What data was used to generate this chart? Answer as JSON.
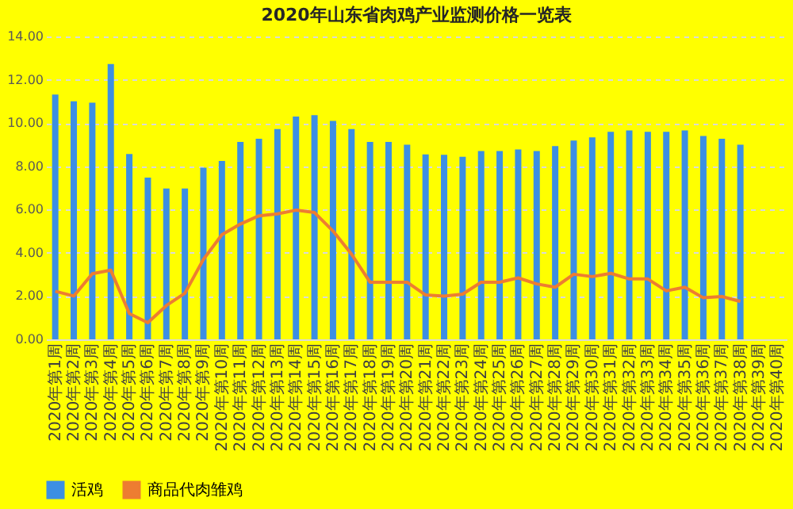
{
  "chart_data": {
    "type": "bar",
    "title": "2020年山东省肉鸡产业监测价格一览表",
    "categories": [
      "2020年第1周",
      "2020年第2周",
      "2020年第3周",
      "2020年第4周",
      "2020年第5周",
      "2020年第6周",
      "2020年第7周",
      "2020年第8周",
      "2020年第9周",
      "2020年第10周",
      "2020年第11周",
      "2020年第12周",
      "2020年第13周",
      "2020年第14周",
      "2020年第15周",
      "2020年第16周",
      "2020年第17周",
      "2020年第18周",
      "2020年第19周",
      "2020年第20周",
      "2020年第21周",
      "2020年第22周",
      "2020年第23周",
      "2020年第24周",
      "2020年第25周",
      "2020年第26周",
      "2020年第27周",
      "2020年第28周",
      "2020年第29周",
      "2020年第30周",
      "2020年第31周",
      "2020年第32周",
      "2020年第33周",
      "2020年第34周",
      "2020年第35周",
      "2020年第36周",
      "2020年第37周",
      "2020年第38周",
      "2020年第39周",
      "2020年第40周"
    ],
    "series": [
      {
        "name": "活鸡",
        "color": "#3c8fe3",
        "values": [
          11.32,
          11.0,
          10.94,
          12.73,
          8.57,
          7.48,
          6.97,
          6.97,
          7.93,
          8.25,
          9.13,
          9.27,
          9.72,
          10.3,
          10.36,
          10.1,
          9.72,
          9.13,
          9.13,
          9.0,
          8.55,
          8.53,
          8.44,
          8.7,
          8.7,
          8.78,
          8.7,
          8.93,
          9.19,
          9.34,
          9.59,
          9.66,
          9.59,
          9.59,
          9.66,
          9.4,
          9.27,
          9.0,
          null,
          null
        ]
      },
      {
        "name": "商品代肉雏鸡",
        "type": "line",
        "color": "#ed7d31",
        "values": [
          2.22,
          2.0,
          3.03,
          3.2,
          1.19,
          0.77,
          1.56,
          2.13,
          3.69,
          4.84,
          5.33,
          5.71,
          5.8,
          5.97,
          5.86,
          5.01,
          3.94,
          2.64,
          2.64,
          2.64,
          2.05,
          2.0,
          2.09,
          2.64,
          2.64,
          2.84,
          2.56,
          2.41,
          3.01,
          2.9,
          3.05,
          2.79,
          2.79,
          2.24,
          2.41,
          1.92,
          1.98,
          1.75,
          null,
          null
        ]
      }
    ],
    "ylim": [
      0,
      14
    ],
    "yticks": [
      {
        "value": 0,
        "label": "0.00"
      },
      {
        "value": 2,
        "label": "2.00"
      },
      {
        "value": 4,
        "label": "4.00"
      },
      {
        "value": 6,
        "label": "6.00"
      },
      {
        "value": 8,
        "label": "8.00"
      },
      {
        "value": 10,
        "label": "10.00"
      },
      {
        "value": 12,
        "label": "12.00"
      },
      {
        "value": 14,
        "label": "14.00"
      }
    ],
    "grid": "y",
    "legend": "bottom",
    "line_style": "solid",
    "marker": "none"
  }
}
